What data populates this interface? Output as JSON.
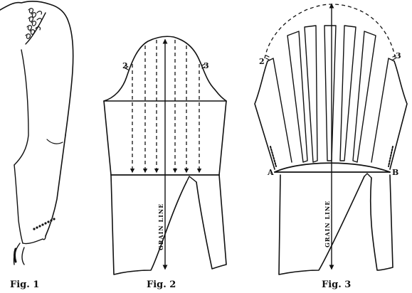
{
  "figures": [
    {
      "caption": "Fig. 1"
    },
    {
      "caption": "Fig. 2",
      "point_left": "2",
      "point_right": "3",
      "grain_label": "GRAIN LINE"
    },
    {
      "caption": "Fig. 3",
      "point_left": "2",
      "point_right": "3",
      "point_a": "A",
      "point_b": "B",
      "grain_label": "GRAIN LINE"
    }
  ]
}
